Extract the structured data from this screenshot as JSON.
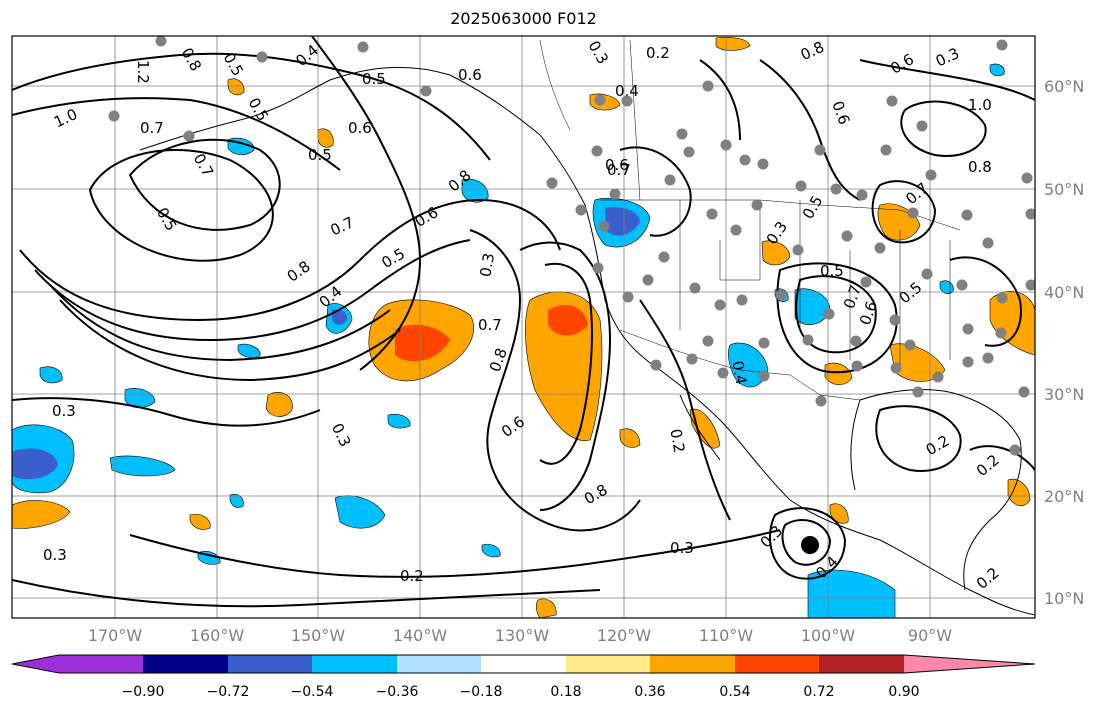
{
  "title": "2025063000 F012",
  "latitude_labels": [
    "60°N",
    "50°N",
    "40°N",
    "30°N",
    "20°N",
    "10°N"
  ],
  "longitude_labels": [
    "170°W",
    "160°W",
    "150°W",
    "140°W",
    "130°W",
    "120°W",
    "110°W",
    "100°W",
    "90°W"
  ],
  "colorbar": {
    "tick_labels": [
      "−0.90",
      "−0.72",
      "−0.54",
      "−0.36",
      "−0.18",
      "0.18",
      "0.36",
      "0.54",
      "0.72",
      "0.90"
    ],
    "colors": [
      "#9b30d9",
      "#00008b",
      "#3a5fcd",
      "#00bfff",
      "#b0e2ff",
      "#ffffff",
      "#ffec8b",
      "#ffa500",
      "#ff4500",
      "#b22222",
      "#ff88aa"
    ]
  },
  "contour_labels": [
    "0.2",
    "0.3",
    "0.4",
    "0.5",
    "0.6",
    "0.7",
    "0.8",
    "1.0",
    "1.2"
  ],
  "colors": {
    "contour": "#000000",
    "axis_label": "#808080",
    "grid": "#808080",
    "marker": "#808080"
  }
}
